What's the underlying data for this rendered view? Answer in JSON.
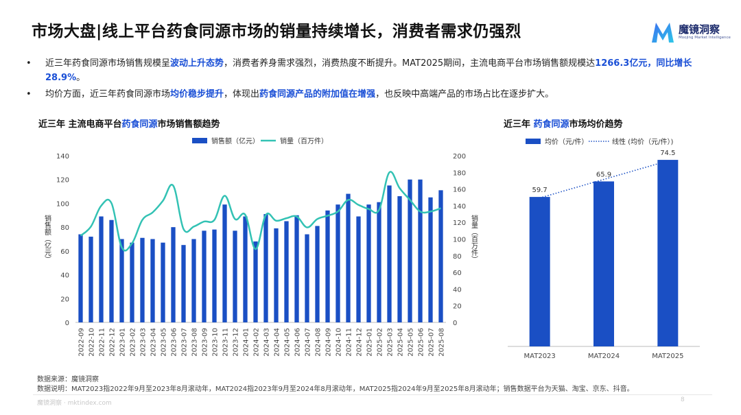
{
  "title": "市场大盘|线上平台药食同源市场的销量持续增长，消费者需求仍强烈",
  "logo": {
    "name": "魔镜洞察",
    "subtitle": "Moojing Market Intelligence"
  },
  "bullets": [
    {
      "parts": [
        {
          "t": "近三年药食同源市场销售规模呈"
        },
        {
          "t": "波动上升态势",
          "hl": true
        },
        {
          "t": "，消费者养身需求强烈，消费热度不断提升。MAT2025期间，主流电商平台市场销售额规模达"
        },
        {
          "t": "1266.3亿元，同比增长28.9%",
          "hl": true
        },
        {
          "t": "。"
        }
      ]
    },
    {
      "parts": [
        {
          "t": "均价方面，近三年药食同源市场"
        },
        {
          "t": "均价稳步提升",
          "hl": true
        },
        {
          "t": "，体现出"
        },
        {
          "t": "药食同源产品的附加值在增强",
          "hl": true
        },
        {
          "t": "，也反映中高端产品的市场占比在逐步扩大。"
        }
      ]
    }
  ],
  "left_title": {
    "pre": "近三年 主流电商平台",
    "hl": "药食同源",
    "post": "市场销售额趋势"
  },
  "right_title": {
    "pre": "近三年 ",
    "hl": "药食同源",
    "post": "市场均价趋势"
  },
  "chart_data": [
    {
      "type": "bar+line",
      "legend": [
        "销售额（亿元）",
        "销量（百万件）"
      ],
      "legend_position": "top",
      "ylabel": "销售额（亿元）",
      "y2label": "销量（百万件）",
      "ylim": [
        0,
        140
      ],
      "y2lim": [
        0,
        200
      ],
      "yticks": [
        "0",
        "20",
        "40",
        "60",
        "80",
        "100",
        "120",
        "140"
      ],
      "y2ticks": [
        "0",
        "20",
        "40",
        "60",
        "80",
        "100",
        "120",
        "140",
        "160",
        "180",
        "200"
      ],
      "categories": [
        "2022-09",
        "2022-10",
        "2022-11",
        "2022-12",
        "2023-01",
        "2023-02",
        "2023-03",
        "2023-04",
        "2023-05",
        "2023-06",
        "2023-07",
        "2023-08",
        "2023-09",
        "2023-10",
        "2023-11",
        "2023-12",
        "2024-01",
        "2024-02",
        "2024-03",
        "2024-04",
        "2024-05",
        "2024-06",
        "2024-07",
        "2024-08",
        "2024-09",
        "2024-10",
        "2024-11",
        "2024-12",
        "2025-01",
        "2025-02",
        "2025-03",
        "2025-04",
        "2025-05",
        "2025-06",
        "2025-07",
        "2025-08"
      ],
      "x_tick_labels": [
        "2022-09",
        "2022-10",
        "2022-11",
        "2022-12",
        "2023-01",
        "2023-02",
        "2023-03",
        "2023-04",
        "2023-05",
        "2023-06",
        "2023-07",
        "2023-08",
        "2023-09",
        "2023-10",
        "2023-11",
        "2023-12",
        "2024-01",
        "2024-02",
        "2024-03",
        "2024-04",
        "2024-05",
        "2024-06",
        "2024-07",
        "2024-08",
        "2024-09",
        "2024-10",
        "2024-11",
        "2024-12",
        "2025-01",
        "2025-02",
        "2025-03",
        "2025-04",
        "2025-05",
        "2025-06",
        "2025-07",
        "2025-08"
      ],
      "series": [
        {
          "name": "销售额（亿元）",
          "axis": "left",
          "type": "bar",
          "color": "#1a4fc4",
          "values": [
            74,
            72,
            89,
            86,
            70,
            67,
            71,
            70,
            67,
            80,
            65,
            70,
            77,
            78,
            99,
            77,
            89,
            68,
            91,
            79,
            85,
            90,
            74,
            81,
            94,
            99,
            108,
            89,
            99,
            101,
            115,
            106,
            120,
            120,
            105,
            111
          ]
        },
        {
          "name": "销量（百万件）",
          "axis": "right",
          "type": "line",
          "color": "#33c2b4",
          "values": [
            104,
            115,
            140,
            143,
            90,
            95,
            123,
            132,
            146,
            164,
            112,
            115,
            121,
            123,
            152,
            124,
            129,
            88,
            129,
            122,
            125,
            127,
            114,
            124,
            128,
            133,
            147,
            141,
            136,
            135,
            180,
            161,
            147,
            133,
            133,
            137
          ]
        }
      ]
    },
    {
      "type": "bar",
      "legend": [
        "均价（元/件）",
        "线性 (均价（元/件）)"
      ],
      "legend_position": "top",
      "categories": [
        "MAT2023",
        "MAT2024",
        "MAT2025"
      ],
      "ylim": [
        0,
        80
      ],
      "series": [
        {
          "name": "均价（元/件）",
          "type": "bar",
          "color": "#1a4fc4",
          "values": [
            59.7,
            65.9,
            74.5
          ],
          "labels": [
            "59.7",
            "65.9",
            "74.5"
          ]
        }
      ],
      "trendline": {
        "name": "线性 (均价（元/件）)",
        "style": "dotted",
        "color": "#1a4fc4"
      }
    }
  ],
  "footer": {
    "source": "数据来源：魔镜洞察",
    "note": "数据说明：MAT2023指2022年9月至2023年8月滚动年，MAT2024指2023年9月至2024年8月滚动年，MAT2025指2024年9月至2025年8月滚动年；销售数据平台为天猫、淘宝、京东、抖音。",
    "site": "魔镜洞察 · mktindex.com",
    "page": "8"
  }
}
